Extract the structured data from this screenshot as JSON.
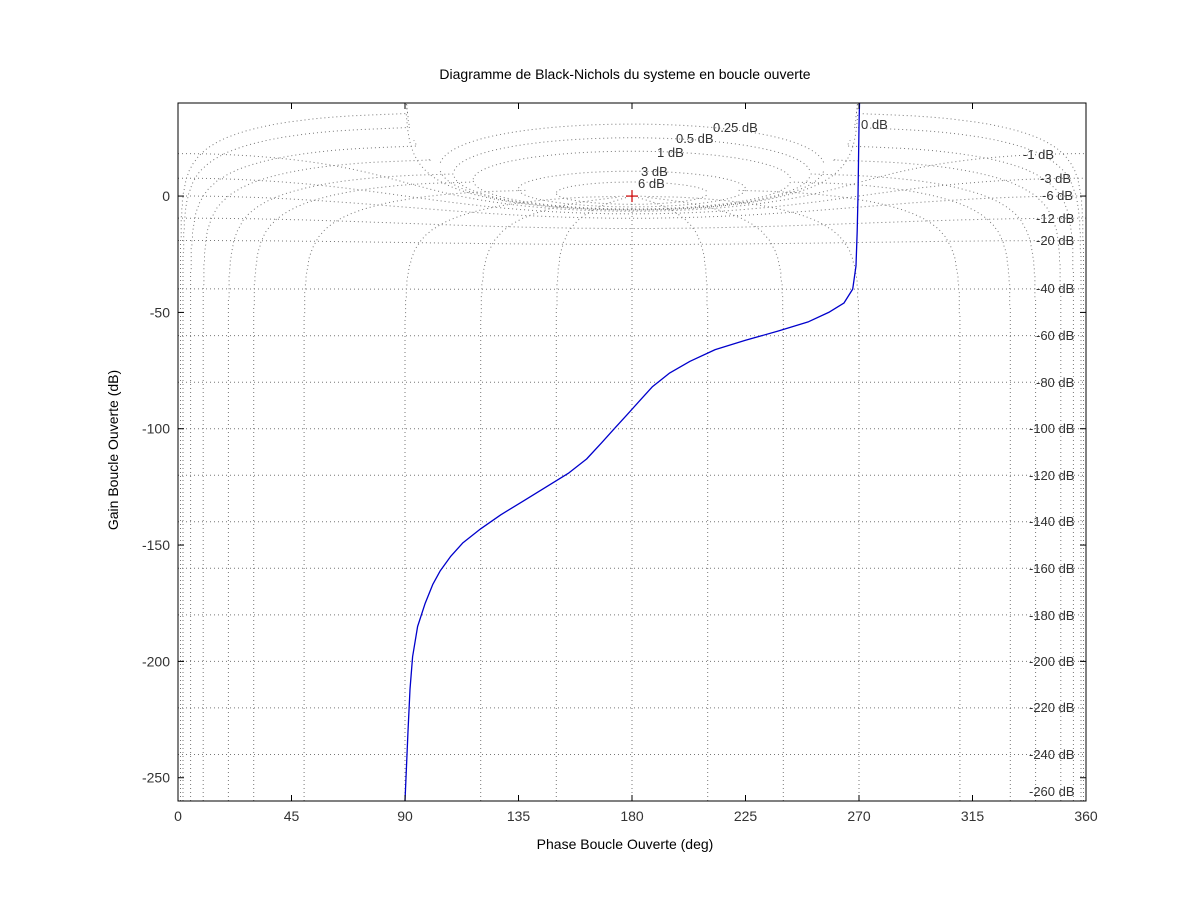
{
  "chart_data": {
    "type": "line",
    "title": "Diagramme de Black-Nichols du systeme en boucle ouverte",
    "xlabel": "Phase Boucle Ouverte (deg)",
    "ylabel": "Gain Boucle Ouverte (dB)",
    "xlim": [
      0,
      360
    ],
    "ylim": [
      -260,
      40
    ],
    "xticks": [
      0,
      45,
      90,
      135,
      180,
      225,
      270,
      315,
      360
    ],
    "yticks": [
      0,
      -50,
      -100,
      -150,
      -200,
      -250
    ],
    "grid": true,
    "series": [
      {
        "color": "#0000cc",
        "x": [
          90.0,
          90.6,
          91.2,
          92.0,
          93.0,
          95.0,
          98.0,
          101.0,
          104.0,
          108.0,
          113.0,
          120.0,
          128.0,
          137.0,
          146.0,
          155.0,
          162.0,
          168.0,
          173.0,
          178.0,
          183.0,
          188.0,
          195.0,
          203.0,
          213.0,
          225.0,
          238.0,
          250.0,
          258.0,
          264.0,
          267.5,
          268.8,
          269.3,
          269.6,
          269.8,
          270.0,
          270.2
        ],
        "y": [
          -260,
          -245,
          -230,
          -212,
          -198,
          -185,
          -175,
          -167,
          -161,
          -155,
          -149,
          -143,
          -137,
          -131,
          -125,
          -119,
          -113,
          -106,
          -100,
          -94,
          -88,
          -82,
          -76,
          -71,
          -66,
          -62,
          -58,
          -54,
          -50,
          -46,
          -40,
          -30,
          -15,
          0,
          15,
          30,
          40
        ]
      }
    ],
    "reference_point": {
      "x": 180,
      "y": 0,
      "marker": "+",
      "color": "#cc0000"
    },
    "m_contours": [
      "0 dB",
      "0.25 dB",
      "0.5 dB",
      "1 dB",
      "3 dB",
      "6 dB",
      "-1 dB",
      "-3 dB",
      "-6 dB",
      "-12 dB",
      "-20 dB",
      "-40 dB",
      "-60 dB",
      "-80 dB",
      "-100 dB",
      "-120 dB",
      "-140 dB",
      "-160 dB",
      "-180 dB",
      "-200 dB",
      "-220 dB",
      "-240 dB",
      "-260 dB"
    ],
    "colors": {
      "curve": "#0000cc",
      "grid": "#777777",
      "critical_point": "#cc0000",
      "axes": "#000000"
    }
  }
}
